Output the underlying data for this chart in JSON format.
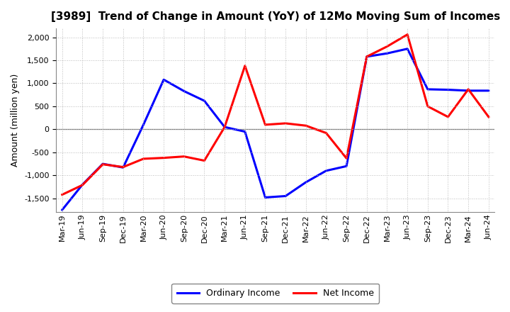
{
  "title": "[3989]  Trend of Change in Amount (YoY) of 12Mo Moving Sum of Incomes",
  "ylabel": "Amount (million yen)",
  "x_labels": [
    "Mar-19",
    "Jun-19",
    "Sep-19",
    "Dec-19",
    "Mar-20",
    "Jun-20",
    "Sep-20",
    "Dec-20",
    "Mar-21",
    "Jun-21",
    "Sep-21",
    "Dec-21",
    "Mar-22",
    "Jun-22",
    "Sep-22",
    "Dec-22",
    "Mar-23",
    "Jun-23",
    "Sep-23",
    "Dec-23",
    "Mar-24",
    "Jun-24"
  ],
  "ordinary_income": [
    -1750,
    -1200,
    -750,
    -830,
    100,
    1080,
    830,
    620,
    50,
    -50,
    -1480,
    -1450,
    -1150,
    -900,
    -800,
    1580,
    1650,
    1750,
    870,
    860,
    840,
    840
  ],
  "net_income": [
    -1420,
    -1210,
    -760,
    -820,
    -640,
    -620,
    -590,
    -680,
    50,
    1380,
    100,
    130,
    80,
    -80,
    -630,
    1580,
    1800,
    2060,
    500,
    270,
    870,
    270
  ],
  "ordinary_color": "#0000ff",
  "net_color": "#ff0000",
  "background_color": "#ffffff",
  "grid_color": "#bbbbbb",
  "ylim": [
    -1800,
    2200
  ],
  "yticks": [
    -1500,
    -1000,
    -500,
    0,
    500,
    1000,
    1500,
    2000
  ],
  "legend_labels": [
    "Ordinary Income",
    "Net Income"
  ],
  "line_width": 2.2,
  "title_fontsize": 11,
  "axis_label_fontsize": 9,
  "tick_fontsize": 8
}
